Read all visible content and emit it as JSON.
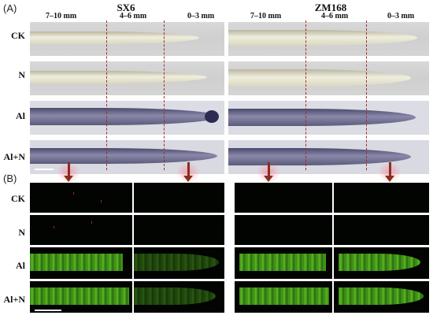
{
  "panels": {
    "a": "(A)",
    "b": "(B)"
  },
  "groups": [
    {
      "title": "SX6",
      "zones": [
        "7–10 mm",
        "4–6 mm",
        "0–3 mm"
      ]
    },
    {
      "title": "ZM168",
      "zones": [
        "7–10 mm",
        "4–6 mm",
        "0–3 mm"
      ]
    }
  ],
  "rows": [
    "CK",
    "N",
    "Al",
    "Al+N"
  ],
  "colors": {
    "divider": "#a32a2a",
    "arrow": "#8a2f1f",
    "fluorescence": "#5fc324",
    "hematoxylin": "#4a4a6c"
  }
}
